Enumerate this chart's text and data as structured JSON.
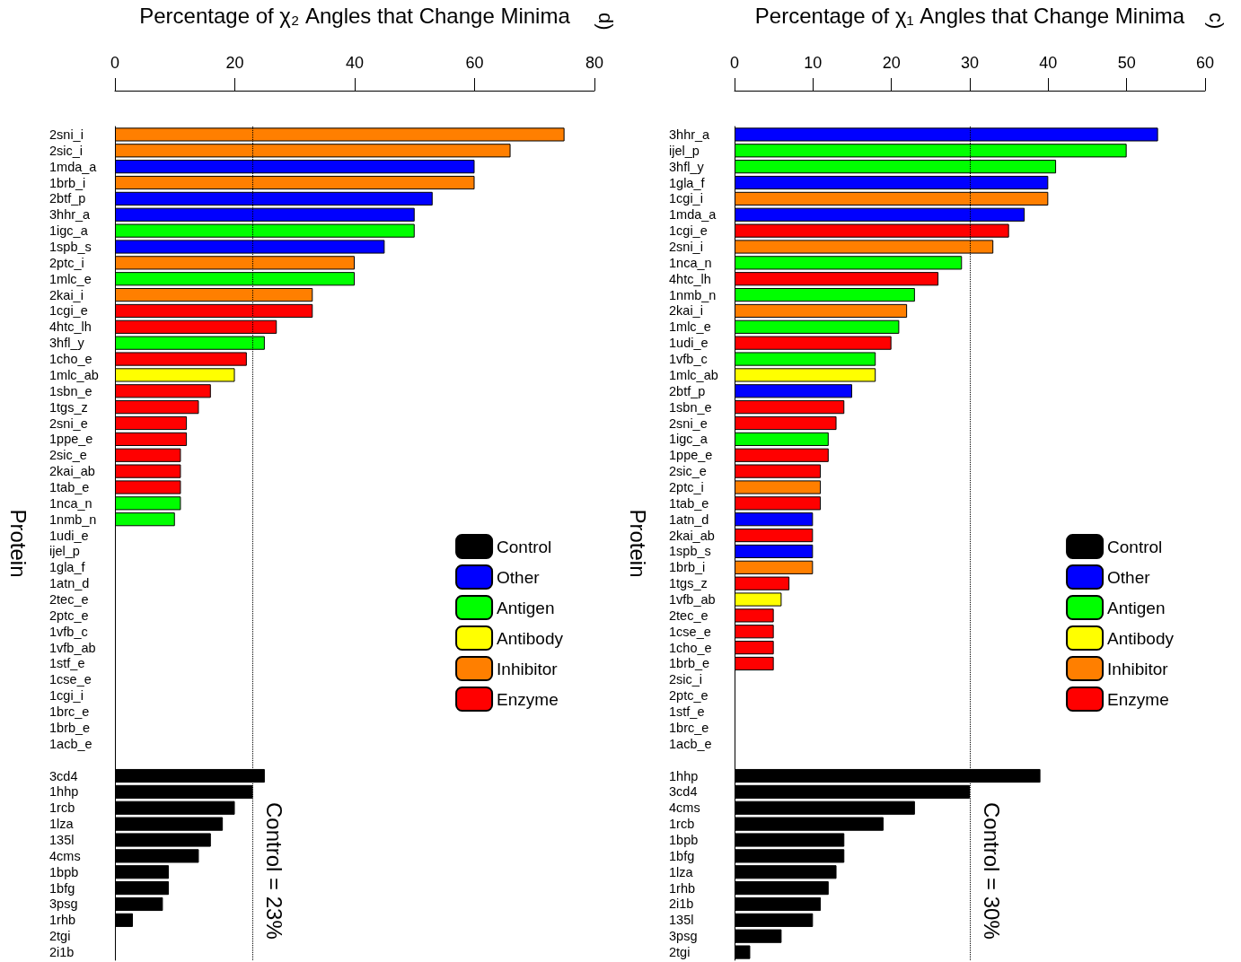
{
  "chart_data": [
    {
      "type": "bar",
      "orientation": "horizontal",
      "stacked": true,
      "legend": "right",
      "xlabel": "Percentage of χ₂ Angles that Change Minima",
      "ylabel": "Protein",
      "xlim": [
        0,
        80
      ],
      "xticks": [
        0,
        20,
        40,
        60,
        80
      ],
      "annotations": [
        "d)"
      ],
      "ref_lines": [
        {
          "axis": "x",
          "value": 23,
          "label": "Control = 23%",
          "color": "#000000",
          "line_style": "dotted"
        }
      ],
      "categories": [
        "2sni_i",
        "2sic_i",
        "1mda_a",
        "1brb_i",
        "2btf_p",
        "3hhr_a",
        "1igc_a",
        "1spb_s",
        "2ptc_i",
        "1mlc_e",
        "2kai_i",
        "1cgi_e",
        "4htc_lh",
        "3hfl_y",
        "1cho_e",
        "1mlc_ab",
        "1sbn_e",
        "1tgs_z",
        "2sni_e",
        "1ppe_e",
        "2sic_e",
        "2kai_ab",
        "1tab_e",
        "1nca_n",
        "1nmb_n",
        "1udi_e",
        "ijel_p",
        "1gla_f",
        "1atn_d",
        "2tec_e",
        "2ptc_e",
        "1vfb_c",
        "1vfb_ab",
        "1stf_e",
        "1cse_e",
        "1cgi_i",
        "1brc_e",
        "1brb_e",
        "1acb_e",
        null,
        "3cd4",
        "1hhp",
        "1rcb",
        "1lza",
        "135l",
        "4cms",
        "1bpb",
        "1bfg",
        "3psg",
        "1rhb",
        "2tgi",
        "2i1b"
      ],
      "series": [
        {
          "name": "Control",
          "color": "#000000",
          "values": [
            null,
            null,
            null,
            null,
            null,
            null,
            null,
            null,
            null,
            null,
            null,
            null,
            null,
            null,
            null,
            null,
            null,
            null,
            null,
            null,
            null,
            null,
            null,
            null,
            null,
            null,
            null,
            null,
            null,
            null,
            null,
            null,
            null,
            null,
            null,
            null,
            null,
            null,
            null,
            null,
            25,
            23,
            20,
            18,
            16,
            14,
            9,
            9,
            8,
            3,
            0,
            0
          ]
        },
        {
          "name": "Other",
          "color": "#0000ff",
          "values": [
            null,
            null,
            60,
            null,
            53,
            50,
            null,
            45,
            null,
            null,
            null,
            null,
            null,
            null,
            null,
            null,
            null,
            null,
            null,
            null,
            null,
            null,
            null,
            null,
            null,
            null,
            null,
            0,
            0,
            null,
            null,
            null,
            null,
            null,
            null,
            null,
            null,
            null,
            null,
            null,
            null,
            null,
            null,
            null,
            null,
            null,
            null,
            null,
            null,
            null,
            null,
            null
          ]
        },
        {
          "name": "Antigen",
          "color": "#00ff00",
          "values": [
            null,
            null,
            null,
            null,
            null,
            null,
            50,
            null,
            null,
            40,
            null,
            null,
            null,
            25,
            null,
            null,
            null,
            null,
            null,
            null,
            null,
            null,
            null,
            11,
            10,
            null,
            0,
            null,
            null,
            null,
            null,
            0,
            null,
            null,
            null,
            null,
            null,
            null,
            null,
            null,
            null,
            null,
            null,
            null,
            null,
            null,
            null,
            null,
            null,
            null,
            null,
            null
          ]
        },
        {
          "name": "Antibody",
          "color": "#ffff00",
          "values": [
            null,
            null,
            null,
            null,
            null,
            null,
            null,
            null,
            null,
            null,
            null,
            null,
            null,
            null,
            null,
            20,
            null,
            null,
            null,
            null,
            null,
            null,
            null,
            null,
            null,
            null,
            null,
            null,
            null,
            null,
            null,
            null,
            0,
            null,
            null,
            null,
            null,
            null,
            null,
            null,
            null,
            null,
            null,
            null,
            null,
            null,
            null,
            null,
            null,
            null,
            null,
            null
          ]
        },
        {
          "name": "Inhibitor",
          "color": "#ff7f00",
          "values": [
            75,
            66,
            null,
            60,
            null,
            null,
            null,
            null,
            40,
            null,
            33,
            null,
            null,
            null,
            null,
            null,
            null,
            null,
            null,
            null,
            null,
            null,
            null,
            null,
            null,
            null,
            null,
            null,
            null,
            null,
            null,
            null,
            null,
            null,
            null,
            0,
            null,
            null,
            null,
            null,
            null,
            null,
            null,
            null,
            null,
            null,
            null,
            null,
            null,
            null,
            null,
            null
          ]
        },
        {
          "name": "Enzyme",
          "color": "#ff0000",
          "values": [
            null,
            null,
            null,
            null,
            null,
            null,
            null,
            null,
            null,
            null,
            null,
            33,
            27,
            null,
            22,
            null,
            16,
            14,
            12,
            12,
            11,
            11,
            11,
            null,
            null,
            0,
            null,
            null,
            null,
            0,
            0,
            null,
            null,
            0,
            0,
            null,
            0,
            0,
            0,
            null,
            null,
            null,
            null,
            null,
            null,
            null,
            null,
            null,
            null,
            null,
            null,
            null
          ]
        }
      ]
    },
    {
      "type": "bar",
      "orientation": "horizontal",
      "stacked": true,
      "legend": "right",
      "xlabel": "Percentage of χ₁ Angles that Change Minima",
      "ylabel": "Protein",
      "xlim": [
        0,
        60
      ],
      "xticks": [
        0,
        10,
        20,
        30,
        40,
        50,
        60
      ],
      "annotations": [
        "c)"
      ],
      "ref_lines": [
        {
          "axis": "x",
          "value": 30,
          "label": "Control = 30%",
          "color": "#000000",
          "line_style": "dotted"
        }
      ],
      "categories": [
        "3hhr_a",
        "ijel_p",
        "3hfl_y",
        "1gla_f",
        "1cgi_i",
        "1mda_a",
        "1cgi_e",
        "2sni_i",
        "1nca_n",
        "4htc_lh",
        "1nmb_n",
        "2kai_i",
        "1mlc_e",
        "1udi_e",
        "1vfb_c",
        "1mlc_ab",
        "2btf_p",
        "1sbn_e",
        "2sni_e",
        "1igc_a",
        "1ppe_e",
        "2sic_e",
        "2ptc_i",
        "1tab_e",
        "1atn_d",
        "2kai_ab",
        "1spb_s",
        "1brb_i",
        "1tgs_z",
        "1vfb_ab",
        "2tec_e",
        "1cse_e",
        "1cho_e",
        "1brb_e",
        "2sic_i",
        "2ptc_e",
        "1stf_e",
        "1brc_e",
        "1acb_e",
        null,
        "1hhp",
        "3cd4",
        "4cms",
        "1rcb",
        "1bpb",
        "1bfg",
        "1lza",
        "1rhb",
        "2i1b",
        "135l",
        "3psg",
        "2tgi"
      ],
      "series": [
        {
          "name": "Control",
          "color": "#000000",
          "values": [
            null,
            null,
            null,
            null,
            null,
            null,
            null,
            null,
            null,
            null,
            null,
            null,
            null,
            null,
            null,
            null,
            null,
            null,
            null,
            null,
            null,
            null,
            null,
            null,
            null,
            null,
            null,
            null,
            null,
            null,
            null,
            null,
            null,
            null,
            null,
            null,
            null,
            null,
            null,
            null,
            39,
            30,
            23,
            19,
            14,
            14,
            13,
            12,
            11,
            10,
            6,
            2
          ]
        },
        {
          "name": "Other",
          "color": "#0000ff",
          "values": [
            54,
            null,
            null,
            40,
            null,
            37,
            null,
            null,
            null,
            null,
            null,
            null,
            null,
            null,
            null,
            null,
            15,
            null,
            null,
            null,
            null,
            null,
            null,
            null,
            10,
            null,
            10,
            null,
            null,
            null,
            null,
            null,
            null,
            null,
            null,
            null,
            null,
            null,
            null,
            null,
            null,
            null,
            null,
            null,
            null,
            null,
            null,
            null,
            null,
            null,
            null,
            null
          ]
        },
        {
          "name": "Antigen",
          "color": "#00ff00",
          "values": [
            null,
            50,
            41,
            null,
            null,
            null,
            null,
            null,
            29,
            null,
            23,
            null,
            21,
            null,
            18,
            null,
            null,
            null,
            null,
            12,
            null,
            null,
            null,
            null,
            null,
            null,
            null,
            null,
            null,
            null,
            null,
            null,
            null,
            null,
            null,
            null,
            null,
            null,
            null,
            null,
            null,
            null,
            null,
            null,
            null,
            null,
            null,
            null,
            null,
            null,
            null,
            null
          ]
        },
        {
          "name": "Antibody",
          "color": "#ffff00",
          "values": [
            null,
            null,
            null,
            null,
            null,
            null,
            null,
            null,
            null,
            null,
            null,
            null,
            null,
            null,
            null,
            18,
            null,
            null,
            null,
            null,
            null,
            null,
            null,
            null,
            null,
            null,
            null,
            null,
            null,
            6,
            null,
            null,
            null,
            null,
            null,
            null,
            null,
            null,
            null,
            null,
            null,
            null,
            null,
            null,
            null,
            null,
            null,
            null,
            null,
            null,
            null,
            null
          ]
        },
        {
          "name": "Inhibitor",
          "color": "#ff7f00",
          "values": [
            null,
            null,
            null,
            null,
            40,
            null,
            null,
            33,
            null,
            null,
            null,
            22,
            null,
            null,
            null,
            null,
            null,
            null,
            null,
            null,
            null,
            null,
            11,
            null,
            null,
            null,
            null,
            10,
            null,
            null,
            null,
            null,
            null,
            null,
            0,
            null,
            null,
            null,
            null,
            null,
            null,
            null,
            null,
            null,
            null,
            null,
            null,
            null,
            null,
            null,
            null,
            null
          ]
        },
        {
          "name": "Enzyme",
          "color": "#ff0000",
          "values": [
            null,
            null,
            null,
            null,
            null,
            null,
            35,
            null,
            null,
            26,
            null,
            null,
            null,
            20,
            null,
            null,
            null,
            14,
            13,
            null,
            12,
            11,
            null,
            11,
            null,
            10,
            null,
            null,
            7,
            null,
            5,
            5,
            5,
            5,
            null,
            0,
            0,
            0,
            0,
            null,
            null,
            null,
            null,
            null,
            null,
            null,
            null,
            null,
            null,
            null,
            null,
            null
          ]
        }
      ]
    }
  ]
}
